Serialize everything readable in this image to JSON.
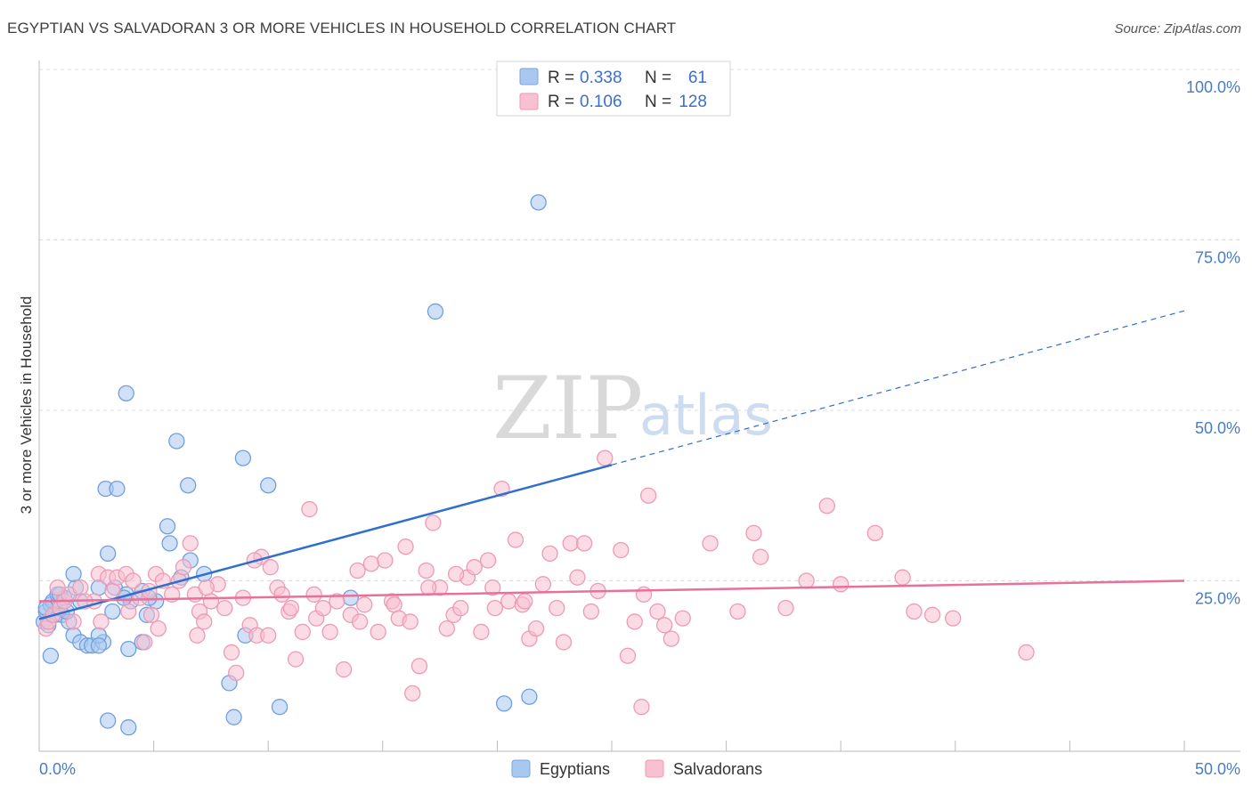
{
  "title": "EGYPTIAN VS SALVADORAN 3 OR MORE VEHICLES IN HOUSEHOLD CORRELATION CHART",
  "source": "Source: ZipAtlas.com",
  "watermark": {
    "zip": "ZIP",
    "atlas": "atlas"
  },
  "legend": {
    "rows": [
      {
        "r_label": "R =",
        "r_value": "0.338",
        "n_label": "N =",
        "n_value": "61",
        "color": "#a9c8f0",
        "stroke": "#7aa5e0"
      },
      {
        "r_label": "R =",
        "r_value": "0.106",
        "n_label": "N =",
        "n_value": "128",
        "color": "#f8c0d0",
        "stroke": "#ee9ab5"
      }
    ]
  },
  "bottom_legend": [
    "Egyptians",
    "Salvadorans"
  ],
  "chart_data": {
    "type": "scatter",
    "title": "EGYPTIAN VS SALVADORAN 3 OR MORE VEHICLES IN HOUSEHOLD CORRELATION CHART",
    "xlabel": "",
    "ylabel": "3 or more Vehicles in Household",
    "xlim": [
      0,
      50
    ],
    "ylim": [
      0,
      100
    ],
    "x_tick_labels": [
      "0.0%",
      "50.0%"
    ],
    "y_ticks": [
      25,
      50,
      75,
      100
    ],
    "y_tick_labels": [
      "25.0%",
      "50.0%",
      "75.0%",
      "100.0%"
    ],
    "grid": true,
    "legend_position": "top-center",
    "series": [
      {
        "name": "Egyptians",
        "color": "#a9c8f0",
        "stroke": "#6f9fdf",
        "trend_color": "#2f6fce",
        "trend": {
          "x0": 0,
          "y0": 19.4,
          "x1": 25,
          "y1": 42.0,
          "dash_to_x": 50,
          "dash_to_y": 64.6
        },
        "points": [
          [
            0.2,
            19
          ],
          [
            0.3,
            20.5
          ],
          [
            0.5,
            21.5
          ],
          [
            0.6,
            22
          ],
          [
            0.7,
            20
          ],
          [
            0.9,
            21
          ],
          [
            1.0,
            20
          ],
          [
            1.1,
            22.5
          ],
          [
            0.4,
            18.5
          ],
          [
            0.5,
            14
          ],
          [
            1.5,
            17
          ],
          [
            1.8,
            16
          ],
          [
            2.1,
            15.5
          ],
          [
            2.3,
            15.5
          ],
          [
            2.8,
            16
          ],
          [
            2.6,
            17
          ],
          [
            1.3,
            19
          ],
          [
            1.8,
            22
          ],
          [
            1.6,
            24
          ],
          [
            1.5,
            26
          ],
          [
            2.6,
            24
          ],
          [
            3.3,
            24
          ],
          [
            3.8,
            23
          ],
          [
            4.0,
            22
          ],
          [
            3.2,
            20.5
          ],
          [
            4.7,
            20
          ],
          [
            5.1,
            22
          ],
          [
            3.0,
            29
          ],
          [
            2.9,
            38.5
          ],
          [
            3.4,
            38.5
          ],
          [
            3.8,
            52.5
          ],
          [
            6.0,
            45.5
          ],
          [
            6.5,
            39
          ],
          [
            5.6,
            33
          ],
          [
            5.7,
            30.5
          ],
          [
            7.2,
            26
          ],
          [
            9.0,
            17
          ],
          [
            8.9,
            43
          ],
          [
            10.0,
            39
          ],
          [
            6.6,
            28
          ],
          [
            6.2,
            25.5
          ],
          [
            8.3,
            10
          ],
          [
            8.5,
            5
          ],
          [
            10.5,
            6.5
          ],
          [
            3.0,
            4.5
          ],
          [
            3.9,
            3.5
          ],
          [
            3.9,
            15
          ],
          [
            4.5,
            16
          ],
          [
            3.7,
            22.5
          ],
          [
            4.5,
            23.5
          ],
          [
            4.8,
            22.5
          ],
          [
            2.6,
            15.5
          ],
          [
            0.8,
            23
          ],
          [
            0.3,
            21
          ],
          [
            13.6,
            22.5
          ],
          [
            17.3,
            64.5
          ],
          [
            20.3,
            7
          ],
          [
            21.4,
            8
          ],
          [
            21.8,
            80.5
          ],
          [
            1.2,
            20.5
          ],
          [
            0.9,
            23
          ]
        ]
      },
      {
        "name": "Salvadorans",
        "color": "#f8c0d0",
        "stroke": "#ee9ab5",
        "trend_color": "#e8709a",
        "trend": {
          "x0": 0,
          "y0": 22.0,
          "x1": 50,
          "y1": 25.0
        },
        "points": [
          [
            0.3,
            18
          ],
          [
            0.4,
            19
          ],
          [
            0.6,
            20
          ],
          [
            0.9,
            21
          ],
          [
            1.1,
            22
          ],
          [
            1.3,
            23
          ],
          [
            1.8,
            24
          ],
          [
            2.4,
            22
          ],
          [
            2.6,
            26
          ],
          [
            3.0,
            25.5
          ],
          [
            3.2,
            23.5
          ],
          [
            3.4,
            25.5
          ],
          [
            3.8,
            26
          ],
          [
            4.1,
            25
          ],
          [
            4.4,
            22.5
          ],
          [
            4.8,
            23.5
          ],
          [
            5.1,
            26
          ],
          [
            5.4,
            25
          ],
          [
            5.8,
            23
          ],
          [
            6.1,
            25
          ],
          [
            6.3,
            27
          ],
          [
            6.6,
            30.5
          ],
          [
            6.8,
            23
          ],
          [
            7.0,
            20.5
          ],
          [
            7.2,
            19
          ],
          [
            7.5,
            22
          ],
          [
            7.8,
            24.5
          ],
          [
            8.1,
            21
          ],
          [
            8.4,
            14.5
          ],
          [
            8.6,
            11.5
          ],
          [
            8.9,
            22.5
          ],
          [
            9.2,
            18.5
          ],
          [
            9.5,
            17
          ],
          [
            9.7,
            28.5
          ],
          [
            10.1,
            27
          ],
          [
            10.4,
            24
          ],
          [
            10.6,
            23
          ],
          [
            10.9,
            20.5
          ],
          [
            11.2,
            13.5
          ],
          [
            11.5,
            17.5
          ],
          [
            11.8,
            35.5
          ],
          [
            12.1,
            19.5
          ],
          [
            12.4,
            21
          ],
          [
            12.7,
            17.5
          ],
          [
            13.0,
            22
          ],
          [
            13.3,
            12
          ],
          [
            13.6,
            20
          ],
          [
            13.9,
            26.5
          ],
          [
            14.2,
            21.5
          ],
          [
            14.5,
            27.5
          ],
          [
            14.8,
            17.5
          ],
          [
            15.1,
            28
          ],
          [
            15.4,
            22
          ],
          [
            15.7,
            19.5
          ],
          [
            16.0,
            30
          ],
          [
            16.3,
            8.5
          ],
          [
            16.6,
            12.5
          ],
          [
            16.9,
            26.5
          ],
          [
            17.2,
            33.5
          ],
          [
            17.5,
            24
          ],
          [
            17.8,
            18
          ],
          [
            18.1,
            20
          ],
          [
            18.4,
            21
          ],
          [
            18.7,
            25.5
          ],
          [
            19.0,
            27
          ],
          [
            19.3,
            17.5
          ],
          [
            19.6,
            28
          ],
          [
            19.9,
            21
          ],
          [
            20.2,
            38.5
          ],
          [
            20.5,
            22
          ],
          [
            20.8,
            31
          ],
          [
            21.1,
            21.5
          ],
          [
            21.4,
            16.5
          ],
          [
            21.7,
            18
          ],
          [
            22.0,
            24.5
          ],
          [
            22.3,
            29
          ],
          [
            22.6,
            21
          ],
          [
            22.9,
            16
          ],
          [
            23.2,
            30.5
          ],
          [
            23.5,
            25.5
          ],
          [
            23.8,
            30.5
          ],
          [
            24.1,
            20.5
          ],
          [
            24.4,
            23.5
          ],
          [
            24.7,
            43
          ],
          [
            25.4,
            29.5
          ],
          [
            25.7,
            14
          ],
          [
            26.0,
            19
          ],
          [
            26.3,
            6.5
          ],
          [
            26.6,
            37.5
          ],
          [
            27.0,
            20.5
          ],
          [
            27.3,
            18.5
          ],
          [
            27.6,
            16.5
          ],
          [
            28.1,
            19.5
          ],
          [
            29.3,
            30.5
          ],
          [
            30.5,
            20.5
          ],
          [
            31.2,
            32
          ],
          [
            31.5,
            28.5
          ],
          [
            32.6,
            21
          ],
          [
            33.5,
            25
          ],
          [
            34.4,
            36
          ],
          [
            35.0,
            24.5
          ],
          [
            36.5,
            32
          ],
          [
            37.7,
            25.5
          ],
          [
            38.2,
            20.5
          ],
          [
            39.0,
            20
          ],
          [
            39.9,
            19.5
          ],
          [
            43.1,
            14.5
          ],
          [
            2.7,
            19
          ],
          [
            3.9,
            20.5
          ],
          [
            4.6,
            16
          ],
          [
            5.2,
            18
          ],
          [
            6.9,
            17
          ],
          [
            9.4,
            28
          ],
          [
            1.5,
            19
          ],
          [
            0.8,
            24
          ],
          [
            2.0,
            22
          ],
          [
            12.0,
            23
          ],
          [
            14.0,
            19
          ],
          [
            15.5,
            21.5
          ],
          [
            16.2,
            19
          ],
          [
            17.0,
            24
          ],
          [
            18.2,
            26
          ],
          [
            19.8,
            24
          ],
          [
            21.2,
            22
          ],
          [
            26.4,
            23
          ],
          [
            10.0,
            17
          ],
          [
            7.3,
            24
          ],
          [
            4.9,
            20
          ],
          [
            11.0,
            21
          ]
        ]
      }
    ]
  }
}
